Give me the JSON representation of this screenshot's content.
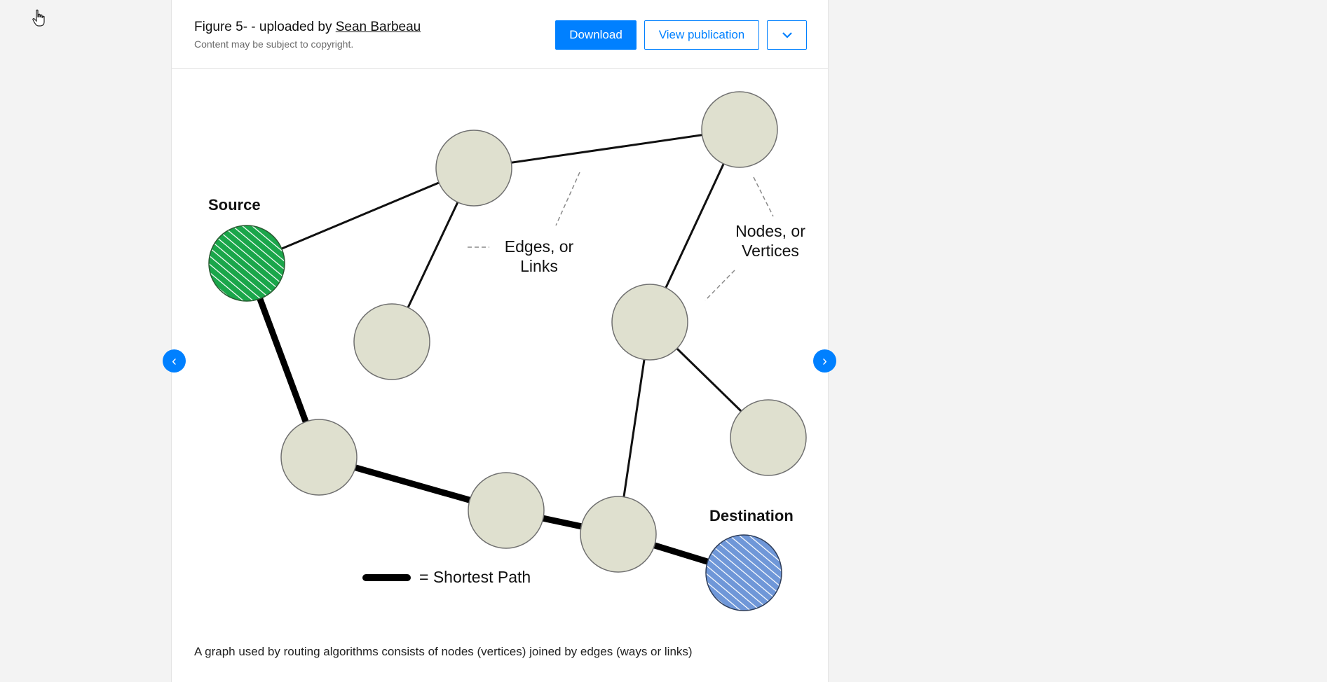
{
  "header": {
    "title_prefix": "Figure 5- - uploaded by ",
    "uploader": "Sean Barbeau",
    "subtitle": "Content may be subject to copyright.",
    "download_label": "Download",
    "view_publication_label": "View publication",
    "more_icon": "chevron-down-icon"
  },
  "figure": {
    "labels": {
      "source": "Source",
      "destination": "Destination",
      "edges_line1": "Edges, or",
      "edges_line2": "Links",
      "nodes_line1": "Nodes, or",
      "nodes_line2": "Vertices",
      "legend": "= Shortest Path"
    },
    "colors": {
      "source_fill": "#1aa64a",
      "destination_fill": "#6f97d8",
      "node_fill": "#dfe0cf"
    }
  },
  "caption": "A graph used by routing algorithms consists of nodes (vertices) joined by edges (ways or links)",
  "nav": {
    "prev_glyph": "‹",
    "next_glyph": "›",
    "prev_icon": "chevron-left-icon",
    "next_icon": "chevron-right-icon"
  },
  "colors": {
    "accent": "#0080ff"
  }
}
